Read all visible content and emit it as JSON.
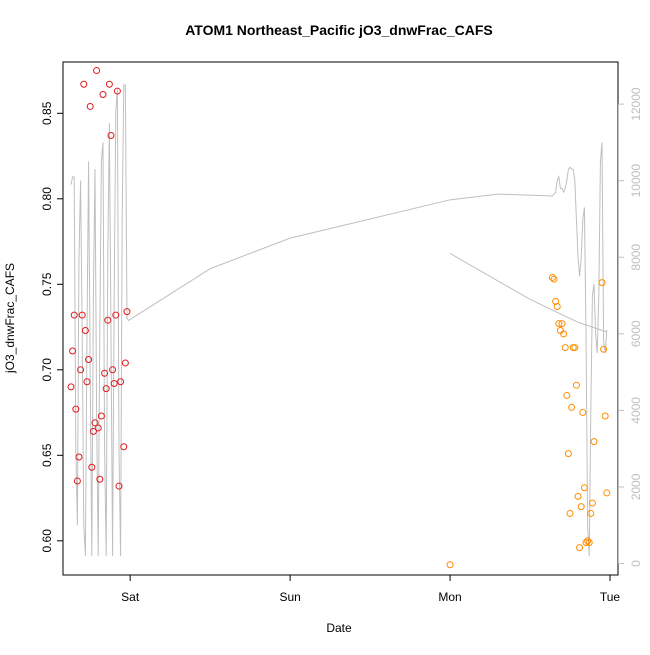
{
  "chart_data": {
    "type": "scatter",
    "title": "ATOM1 Northeast_Pacific jO3_dnwFrac_CAFS",
    "xlabel": "Date",
    "ylabel": "jO3_dnwFrac_CAFS",
    "x_ticks": [
      "Sat",
      "Sun",
      "Mon",
      "Tue"
    ],
    "xlim_days": [
      -0.42,
      3.05
    ],
    "ylim": [
      0.58,
      0.88
    ],
    "y_ticks": [
      "0.60",
      "0.65",
      "0.70",
      "0.75",
      "0.80",
      "0.85"
    ],
    "y_tick_values": [
      0.6,
      0.65,
      0.7,
      0.75,
      0.8,
      0.85
    ],
    "y2_ticks": [
      "0",
      "2000",
      "4000",
      "6000",
      "8000",
      "10000",
      "12000"
    ],
    "y2_tick_values": [
      0,
      2000,
      4000,
      6000,
      8000,
      10000,
      12000
    ],
    "y2lim": [
      -300,
      13100
    ],
    "grid": false,
    "series": [
      {
        "color": "#e31a1c",
        "points": [
          [
            -0.37,
            0.69
          ],
          [
            -0.36,
            0.711
          ],
          [
            -0.35,
            0.732
          ],
          [
            -0.34,
            0.677
          ],
          [
            -0.33,
            0.635
          ],
          [
            -0.32,
            0.649
          ],
          [
            -0.31,
            0.7
          ],
          [
            -0.3,
            0.732
          ],
          [
            -0.29,
            0.867
          ],
          [
            -0.28,
            0.723
          ],
          [
            -0.27,
            0.693
          ],
          [
            -0.26,
            0.706
          ],
          [
            -0.25,
            0.854
          ],
          [
            -0.24,
            0.643
          ],
          [
            -0.23,
            0.664
          ],
          [
            -0.22,
            0.669
          ],
          [
            -0.21,
            0.875
          ],
          [
            -0.2,
            0.666
          ],
          [
            -0.19,
            0.636
          ],
          [
            -0.18,
            0.673
          ],
          [
            -0.17,
            0.861
          ],
          [
            -0.16,
            0.698
          ],
          [
            -0.15,
            0.689
          ],
          [
            -0.14,
            0.729
          ],
          [
            -0.13,
            0.867
          ],
          [
            -0.12,
            0.837
          ],
          [
            -0.11,
            0.7
          ],
          [
            -0.1,
            0.692
          ],
          [
            -0.09,
            0.732
          ],
          [
            -0.08,
            0.863
          ],
          [
            -0.07,
            0.632
          ],
          [
            -0.06,
            0.693
          ],
          [
            -0.04,
            0.655
          ],
          [
            -0.03,
            0.704
          ],
          [
            -0.02,
            0.734
          ]
        ]
      },
      {
        "color": "#ff8c00",
        "points": [
          [
            2.0,
            0.586
          ],
          [
            2.64,
            0.754
          ],
          [
            2.65,
            0.753
          ],
          [
            2.66,
            0.74
          ],
          [
            2.67,
            0.737
          ],
          [
            2.68,
            0.727
          ],
          [
            2.69,
            0.723
          ],
          [
            2.7,
            0.727
          ],
          [
            2.71,
            0.721
          ],
          [
            2.72,
            0.713
          ],
          [
            2.73,
            0.685
          ],
          [
            2.74,
            0.651
          ],
          [
            2.75,
            0.616
          ],
          [
            2.76,
            0.678
          ],
          [
            2.77,
            0.713
          ],
          [
            2.78,
            0.713
          ],
          [
            2.79,
            0.691
          ],
          [
            2.8,
            0.626
          ],
          [
            2.81,
            0.596
          ],
          [
            2.82,
            0.62
          ],
          [
            2.83,
            0.675
          ],
          [
            2.84,
            0.631
          ],
          [
            2.85,
            0.599
          ],
          [
            2.86,
            0.6
          ],
          [
            2.87,
            0.599
          ],
          [
            2.88,
            0.616
          ],
          [
            2.89,
            0.622
          ],
          [
            2.9,
            0.658
          ],
          [
            2.95,
            0.751
          ],
          [
            2.96,
            0.712
          ],
          [
            2.97,
            0.673
          ],
          [
            2.98,
            0.628
          ]
        ]
      },
      {
        "color": "#bfbfbf",
        "axis": "right",
        "line": [
          [
            -0.37,
            9900
          ],
          [
            -0.36,
            10100
          ],
          [
            -0.35,
            10100
          ],
          [
            -0.34,
            3000
          ],
          [
            -0.33,
            1000
          ],
          [
            -0.32,
            8000
          ],
          [
            -0.31,
            10000
          ],
          [
            -0.3,
            6000
          ],
          [
            -0.29,
            1000
          ],
          [
            -0.28,
            200
          ],
          [
            -0.27,
            6000
          ],
          [
            -0.26,
            10500
          ],
          [
            -0.25,
            5000
          ],
          [
            -0.24,
            200
          ],
          [
            -0.23,
            7000
          ],
          [
            -0.22,
            10300
          ],
          [
            -0.21,
            4000
          ],
          [
            -0.2,
            200
          ],
          [
            -0.19,
            6000
          ],
          [
            -0.18,
            10500
          ],
          [
            -0.17,
            11000
          ],
          [
            -0.16,
            3000
          ],
          [
            -0.15,
            200
          ],
          [
            -0.14,
            8000
          ],
          [
            -0.13,
            11500
          ],
          [
            -0.12,
            6000
          ],
          [
            -0.11,
            200
          ],
          [
            -0.1,
            7000
          ],
          [
            -0.09,
            11800
          ],
          [
            -0.08,
            12400
          ],
          [
            -0.07,
            3000
          ],
          [
            -0.06,
            200
          ],
          [
            -0.05,
            9000
          ],
          [
            -0.04,
            12500
          ],
          [
            -0.03,
            12500
          ],
          [
            -0.02,
            6400
          ],
          [
            -0.01,
            6350
          ],
          [
            0.5,
            7700
          ],
          [
            1.0,
            8500
          ],
          [
            1.5,
            9000
          ],
          [
            2.0,
            9500
          ],
          [
            2.3,
            9650
          ],
          [
            2.64,
            9600
          ],
          [
            2.65,
            9650
          ],
          [
            2.66,
            9700
          ],
          [
            2.67,
            10000
          ],
          [
            2.68,
            10100
          ],
          [
            2.69,
            9800
          ],
          [
            2.7,
            9800
          ],
          [
            2.71,
            9700
          ],
          [
            2.72,
            9800
          ],
          [
            2.73,
            10000
          ],
          [
            2.74,
            10300
          ],
          [
            2.75,
            10350
          ],
          [
            2.76,
            10300
          ],
          [
            2.77,
            10300
          ],
          [
            2.78,
            10000
          ],
          [
            2.79,
            9000
          ],
          [
            2.8,
            8000
          ],
          [
            2.81,
            7500
          ],
          [
            2.82,
            8000
          ],
          [
            2.83,
            9000
          ],
          [
            2.84,
            9300
          ],
          [
            2.85,
            6000
          ],
          [
            2.86,
            1000
          ],
          [
            2.87,
            200
          ],
          [
            2.88,
            4000
          ],
          [
            2.89,
            7000
          ],
          [
            2.9,
            7300
          ],
          [
            2.91,
            6000
          ],
          [
            2.92,
            5500
          ],
          [
            2.93,
            7000
          ],
          [
            2.94,
            10500
          ],
          [
            2.95,
            11000
          ],
          [
            2.96,
            5800
          ],
          [
            2.97,
            5500
          ],
          [
            2.98,
            6100
          ]
        ]
      },
      {
        "color": "#bfbfbf",
        "axis": "right",
        "line": [
          [
            2.0,
            8100
          ],
          [
            2.5,
            6900
          ],
          [
            2.8,
            6300
          ],
          [
            2.98,
            6050
          ]
        ]
      }
    ]
  }
}
